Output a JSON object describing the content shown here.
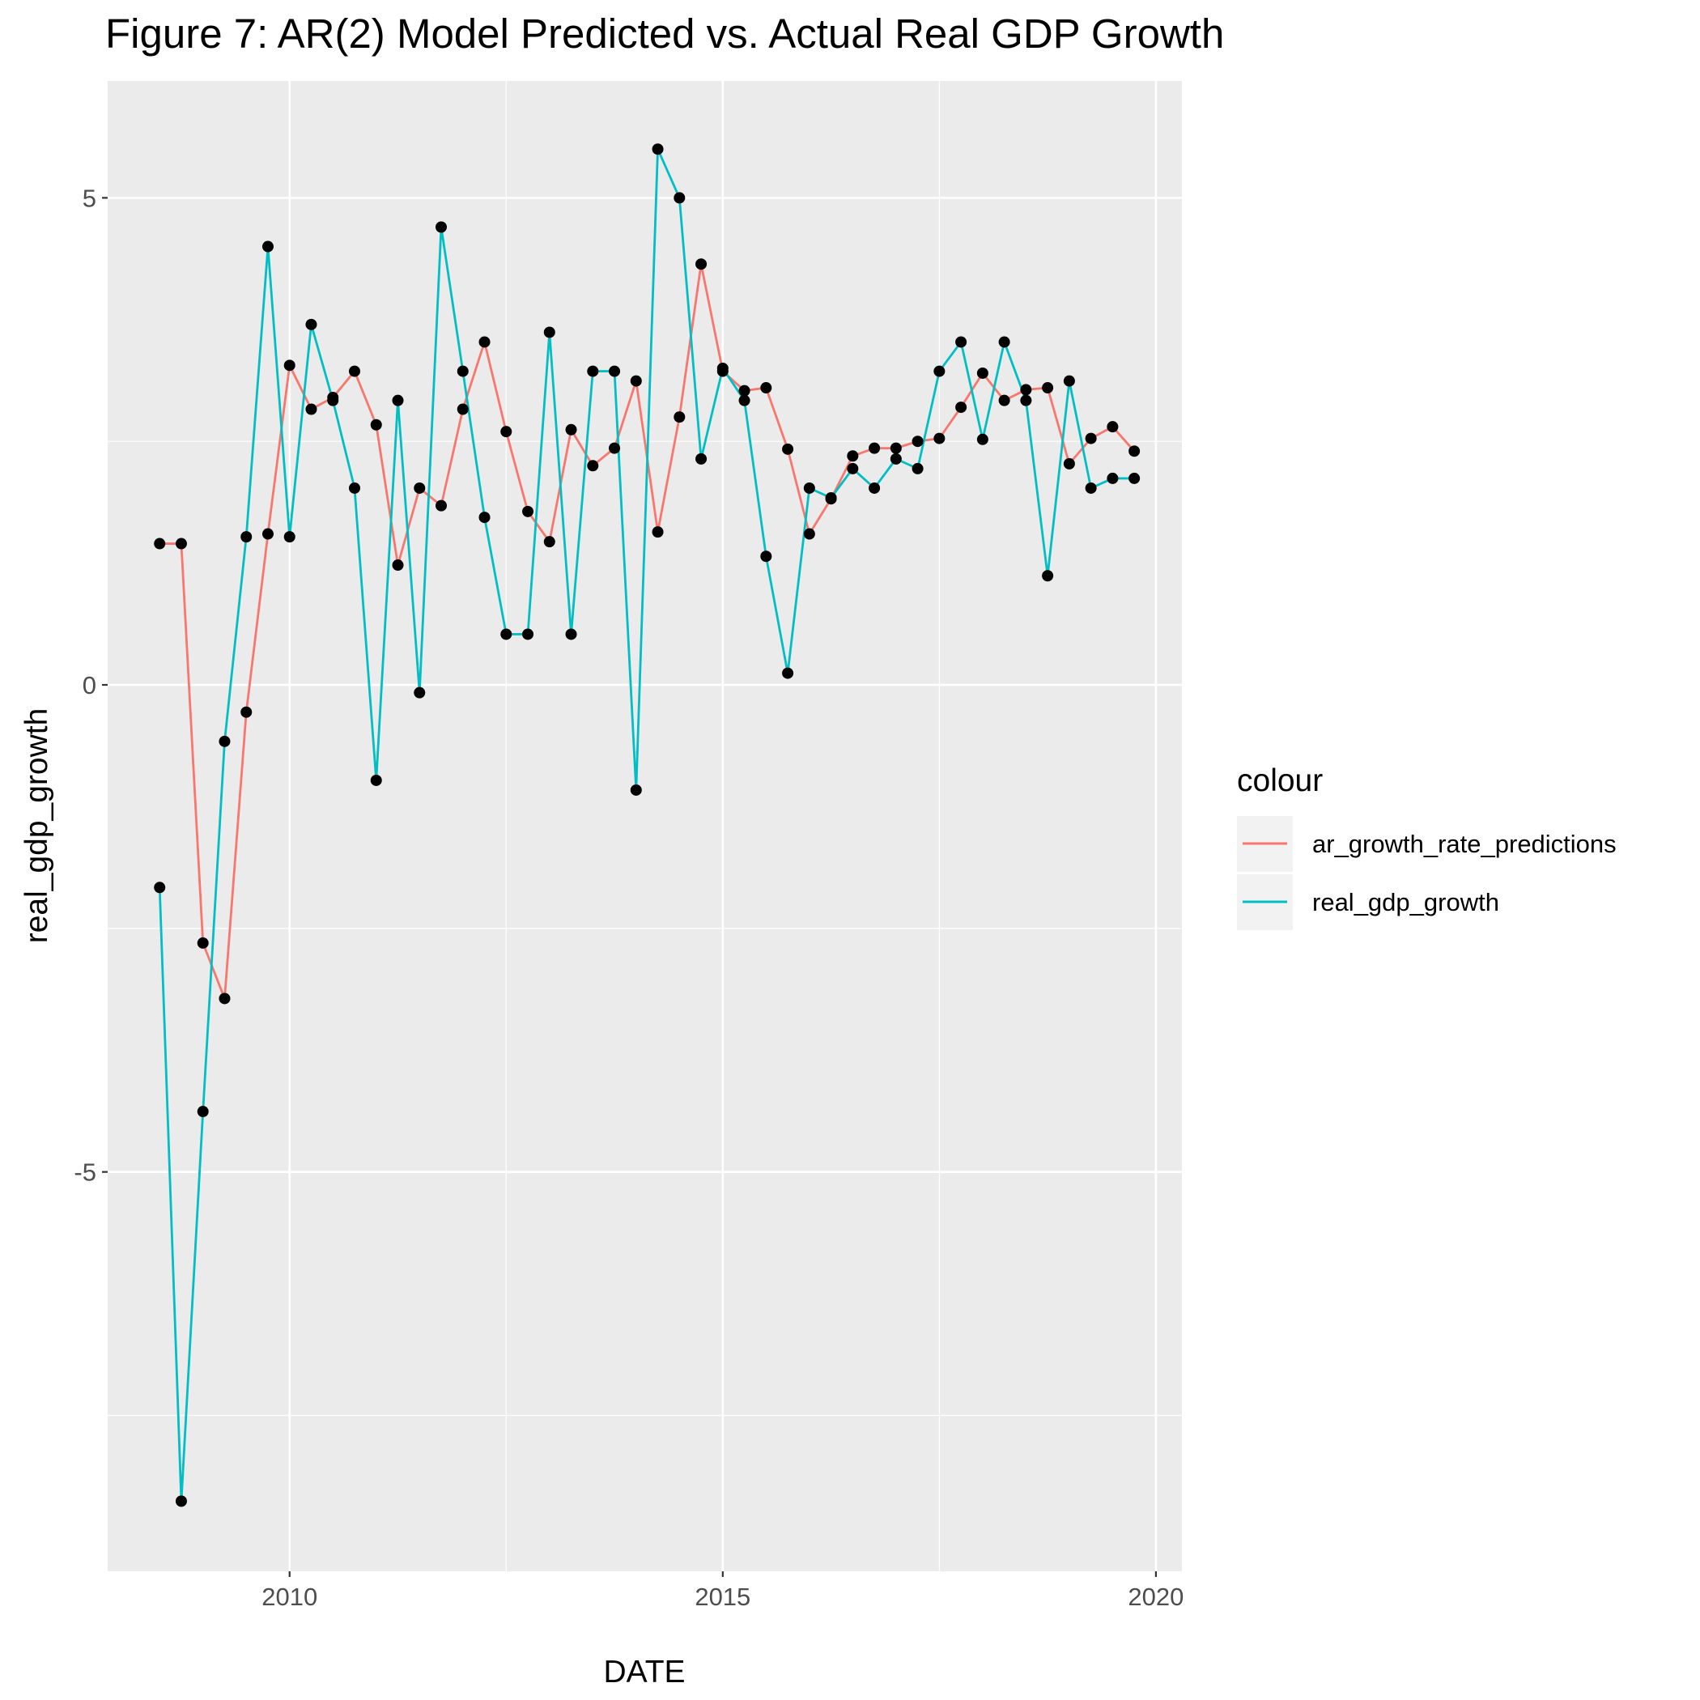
{
  "chart_data": {
    "type": "line",
    "title": "Figure 7: AR(2) Model Predicted vs. Actual Real GDP Growth",
    "xlabel": "DATE",
    "ylabel": "real_gdp_growth",
    "xlim": [
      2007.9,
      2020.3
    ],
    "ylim": [
      -9.1,
      6.2
    ],
    "x_ticks": [
      {
        "label": "2010",
        "value": 2010
      },
      {
        "label": "2015",
        "value": 2015
      },
      {
        "label": "2020",
        "value": 2020
      }
    ],
    "y_ticks": [
      {
        "label": "-5",
        "value": -5
      },
      {
        "label": "0",
        "value": 0
      },
      {
        "label": "5",
        "value": 5
      }
    ],
    "grid": true,
    "legend": {
      "title": "colour",
      "position": "right"
    },
    "x": [
      2008.5,
      2008.75,
      2009.0,
      2009.25,
      2009.5,
      2009.75,
      2010.0,
      2010.25,
      2010.5,
      2010.75,
      2011.0,
      2011.25,
      2011.5,
      2011.75,
      2012.0,
      2012.25,
      2012.5,
      2012.75,
      2013.0,
      2013.25,
      2013.5,
      2013.75,
      2014.0,
      2014.25,
      2014.5,
      2014.75,
      2015.0,
      2015.25,
      2015.5,
      2015.75,
      2016.0,
      2016.25,
      2016.5,
      2016.75,
      2017.0,
      2017.25,
      2017.5,
      2017.75,
      2018.0,
      2018.25,
      2018.5,
      2018.75,
      2019.0,
      2019.25,
      2019.5,
      2019.75
    ],
    "series": [
      {
        "name": "ar_growth_rate_predictions",
        "color": "#F8766D",
        "values": [
          1.45,
          1.45,
          -2.65,
          -3.22,
          -0.28,
          1.55,
          3.28,
          2.83,
          2.95,
          3.22,
          2.67,
          1.23,
          2.02,
          1.84,
          2.83,
          3.52,
          2.6,
          1.78,
          1.47,
          2.62,
          2.25,
          2.43,
          3.12,
          1.57,
          2.75,
          4.32,
          3.22,
          3.02,
          3.05,
          2.42,
          1.55,
          1.91,
          2.35,
          2.43,
          2.43,
          2.5,
          2.53,
          2.85,
          3.2,
          2.92,
          3.03,
          3.05,
          2.27,
          2.53,
          2.65,
          2.4
        ]
      },
      {
        "name": "real_gdp_growth",
        "color": "#00BFC4",
        "values": [
          -2.08,
          -8.38,
          -4.38,
          -0.58,
          1.52,
          4.5,
          1.52,
          3.7,
          2.92,
          2.02,
          -0.98,
          2.92,
          -0.08,
          4.7,
          3.22,
          1.72,
          0.52,
          0.52,
          3.62,
          0.52,
          3.22,
          3.22,
          -1.08,
          5.5,
          5.0,
          2.32,
          3.25,
          2.92,
          1.32,
          0.12,
          2.02,
          1.92,
          2.22,
          2.02,
          2.32,
          2.22,
          3.22,
          3.52,
          2.52,
          3.52,
          2.92,
          1.12,
          3.12,
          2.02,
          2.12,
          2.12
        ]
      }
    ]
  }
}
